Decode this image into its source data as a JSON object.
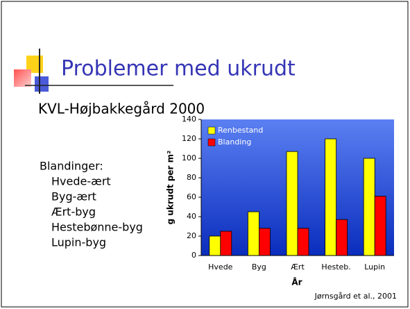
{
  "slide": {
    "title": "Problemer med ukrudt",
    "subtitle": "KVL-Højbakkegård 2000",
    "list_heading": "Blandinger:",
    "items": [
      "Hvede-ært",
      "Byg-ært",
      "Ært-byg",
      "Hestebønne-byg",
      "Lupin-byg"
    ],
    "citation": "Jørnsgård et al., 2001"
  },
  "chart_data": {
    "type": "bar",
    "categories": [
      "Hvede",
      "Byg",
      "Ært",
      "Hesteb.",
      "Lupin"
    ],
    "series": [
      {
        "name": "Renbestand",
        "color": "#ffff00",
        "values": [
          20,
          45,
          107,
          120,
          100
        ]
      },
      {
        "name": "Blanding",
        "color": "#ff0000",
        "values": [
          25,
          28,
          28,
          37,
          61
        ]
      }
    ],
    "ylim": [
      0,
      140
    ],
    "yticks": [
      0,
      20,
      40,
      60,
      80,
      100,
      120,
      140
    ],
    "ylabel": "g ukrudt per m²",
    "xlabel": "År",
    "legend": "upper left"
  }
}
